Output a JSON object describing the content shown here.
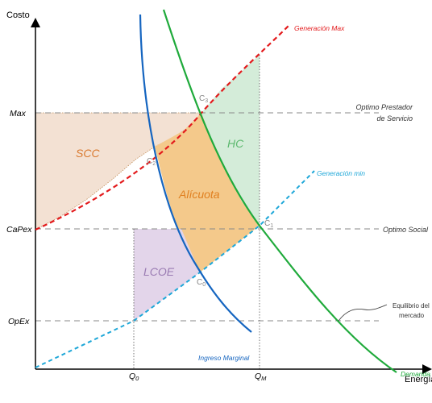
{
  "axes": {
    "y_label": "Costo",
    "x_label": "Energía",
    "y_ticks": {
      "max": "Max",
      "capex": "CaPex",
      "opex": "OpEx"
    },
    "x_ticks": {
      "q0_main": "Q",
      "q0_sub": "0",
      "qm_main": "Q",
      "qm_sub": "M"
    }
  },
  "curves": {
    "gen_max": "Generación Max",
    "gen_min": "Generación min",
    "ingreso": "Ingreso Marginal",
    "demanda": "Demanda"
  },
  "regions": {
    "scc": "SCC",
    "hc": "HC",
    "alicuota": "Alícuota",
    "lcoe": "LCOE"
  },
  "points": {
    "c3": "C",
    "c3_sub": "3",
    "c2": "C",
    "c2_sub": "2",
    "c1": "C",
    "c1_sub": "1",
    "c0": "C",
    "c0_sub": "0"
  },
  "right_labels": {
    "optimo_prestador_1": "Optimo Prestador",
    "optimo_prestador_2": "de Servicio",
    "optimo_social": "Optimo Social",
    "equilibrio_1": "Equilibrio del",
    "equilibrio_2": "mercado"
  },
  "colors": {
    "gen_max": "#e31a1c",
    "gen_min": "#1ea7d8",
    "ingreso": "#1565c0",
    "demanda": "#1faa3b",
    "scc_fill": "#f3e1d3",
    "hc_fill": "#d4ecd9",
    "alicuota_fill": "#f4c98b",
    "lcoe_fill": "#e3d5ea",
    "scc_text": "#d9782d",
    "hc_text": "#5cb86e",
    "alicuota_text": "#e07f1f",
    "lcoe_text": "#9a7bb3"
  }
}
